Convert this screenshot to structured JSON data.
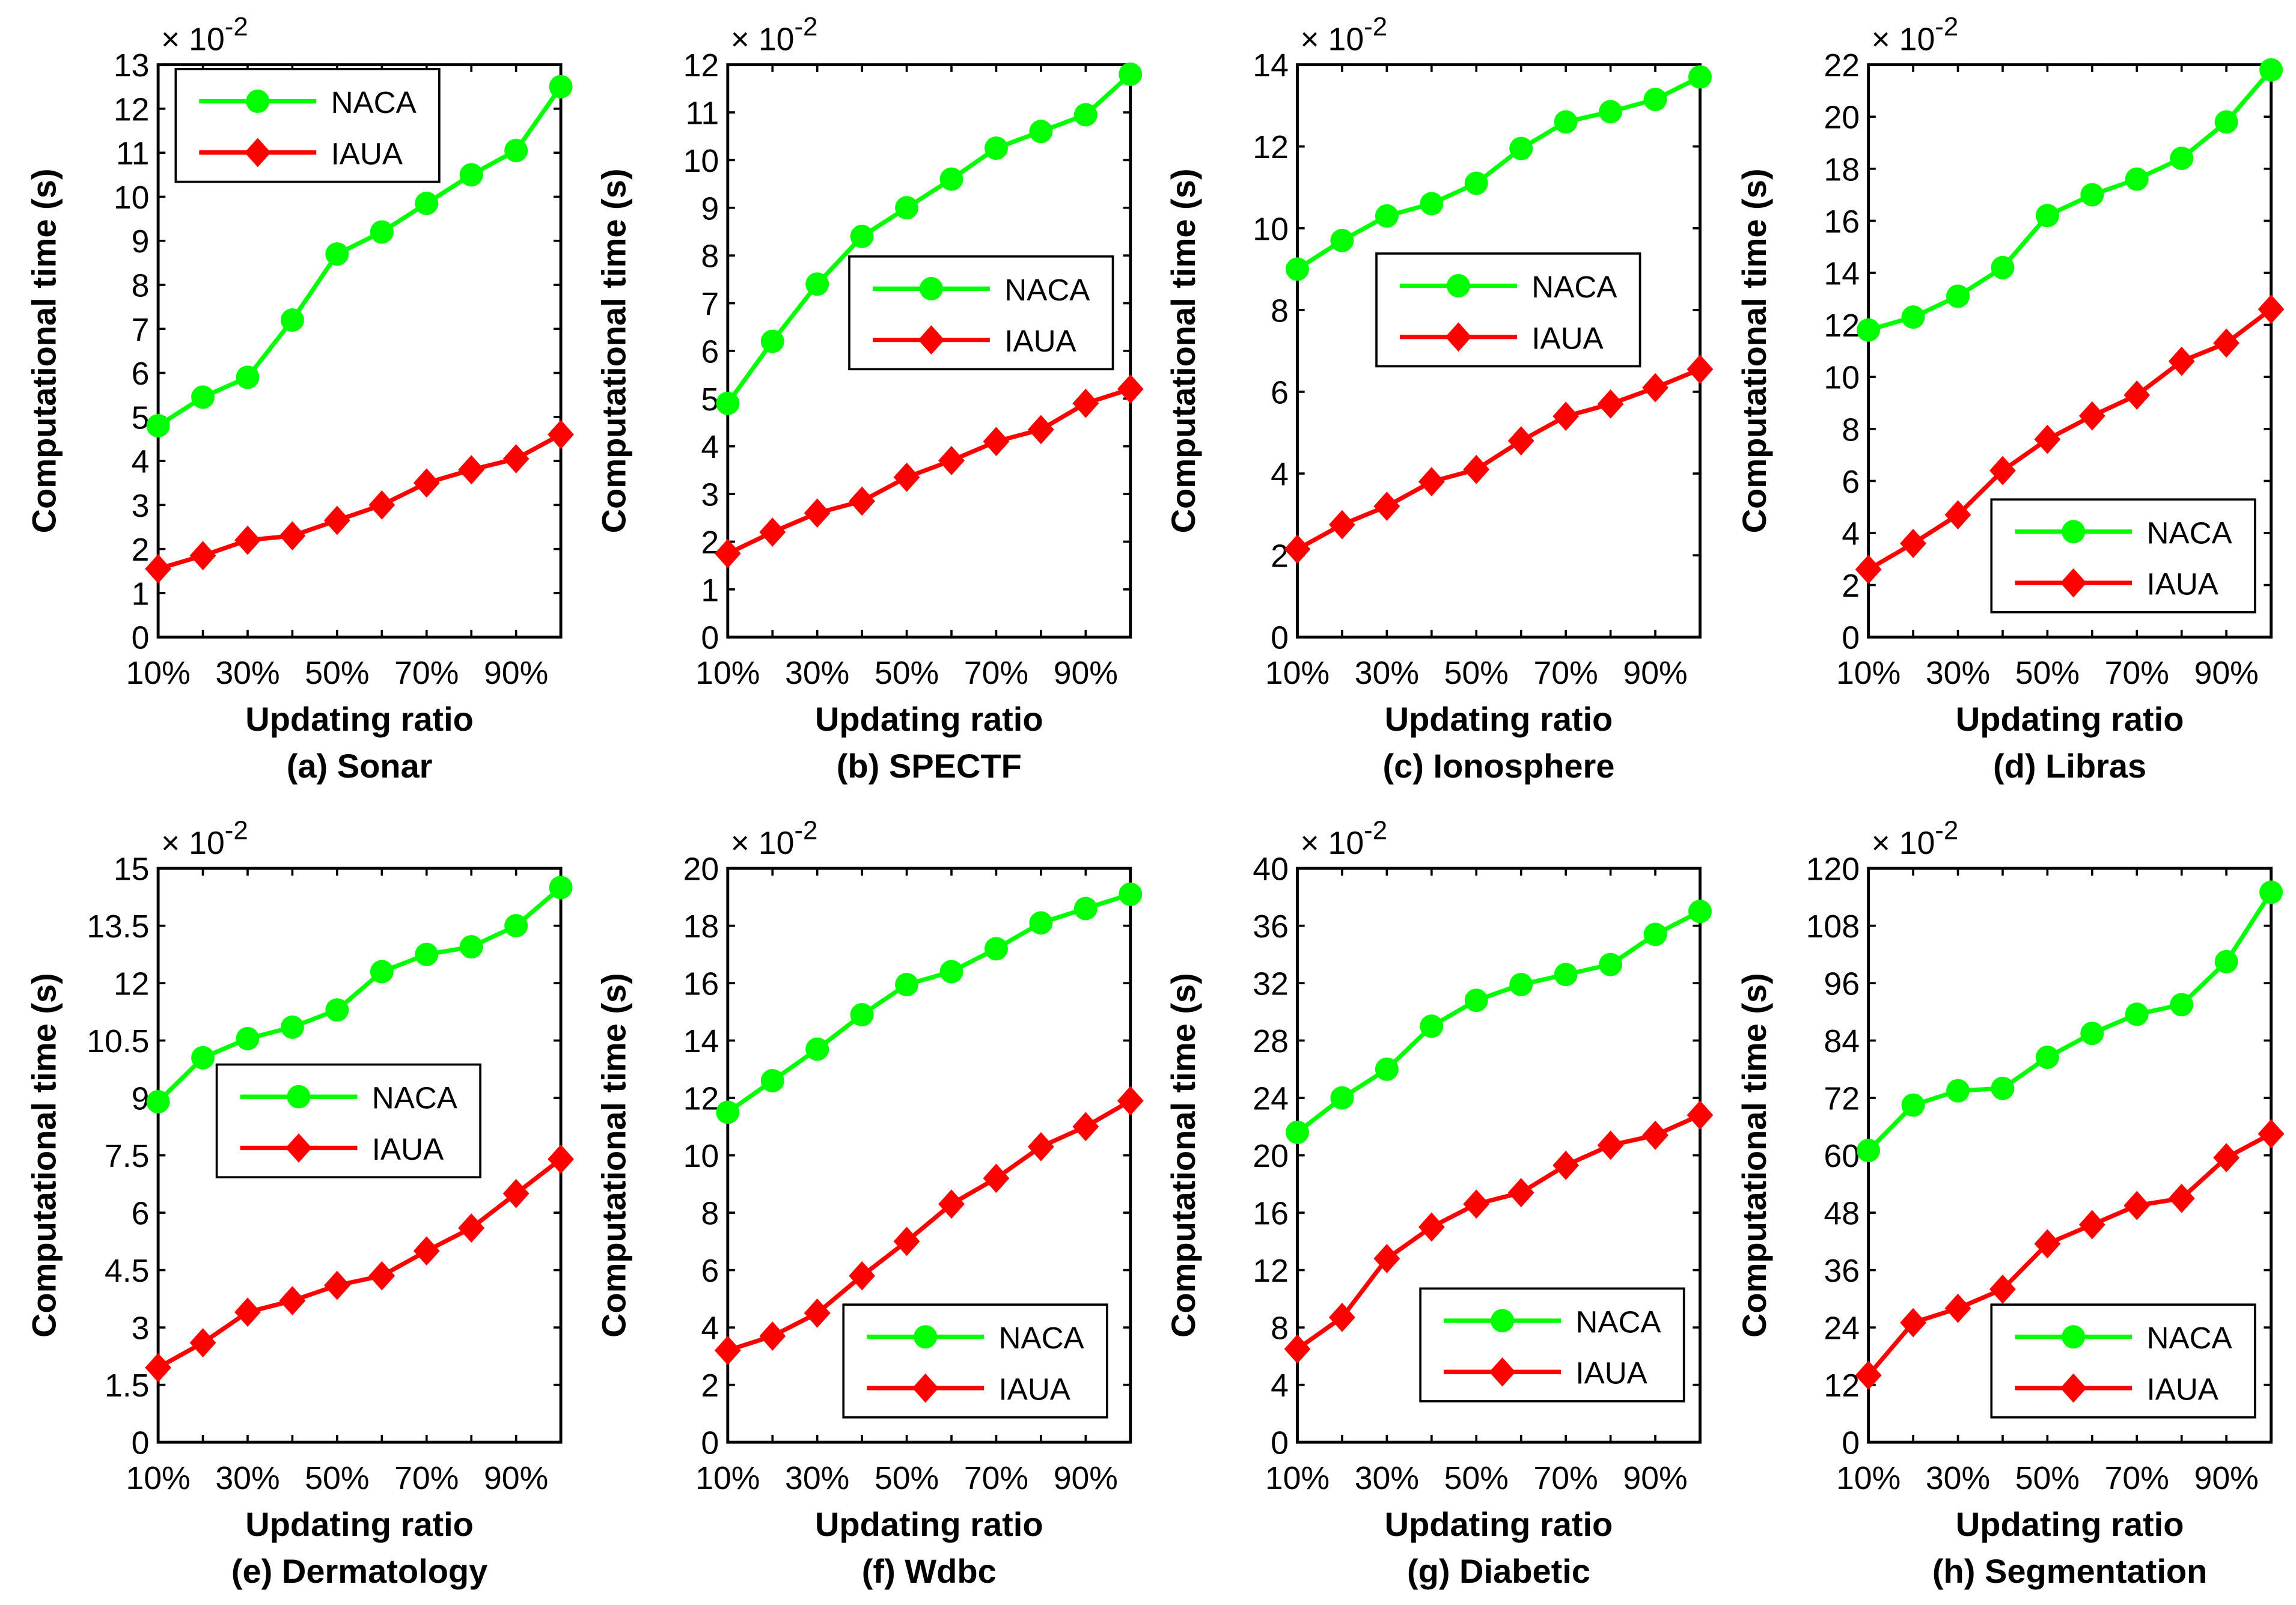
{
  "chart_data": [
    {
      "type": "line",
      "title": "(a) Sonar",
      "xlabel": "Updating ratio",
      "ylabel": "Computational time (s)",
      "y_multiplier": "× 10^-2",
      "x": [
        "10%",
        "20%",
        "30%",
        "40%",
        "50%",
        "60%",
        "70%",
        "80%",
        "90%",
        "100%"
      ],
      "xticklabels": [
        "10%",
        "30%",
        "50%",
        "70%",
        "90%"
      ],
      "ylim": [
        0,
        13
      ],
      "yticks": [
        0,
        1,
        2,
        3,
        4,
        5,
        6,
        7,
        8,
        9,
        10,
        11,
        12,
        13
      ],
      "legend": "top-left",
      "series": [
        {
          "name": "NACA",
          "color": "#00ff00",
          "marker": "circle",
          "values": [
            4.8,
            5.45,
            5.9,
            7.2,
            8.7,
            9.2,
            9.85,
            10.5,
            11.05,
            12.5
          ]
        },
        {
          "name": "IAUA",
          "color": "#ff0000",
          "marker": "diamond",
          "values": [
            1.55,
            1.85,
            2.2,
            2.3,
            2.65,
            3.0,
            3.5,
            3.8,
            4.05,
            4.6
          ]
        }
      ]
    },
    {
      "type": "line",
      "title": "(b) SPECTF",
      "xlabel": "Updating ratio",
      "ylabel": "Computational time (s)",
      "y_multiplier": "× 10^-2",
      "x": [
        "10%",
        "20%",
        "30%",
        "40%",
        "50%",
        "60%",
        "70%",
        "80%",
        "90%",
        "100%"
      ],
      "xticklabels": [
        "10%",
        "30%",
        "50%",
        "70%",
        "90%"
      ],
      "ylim": [
        0,
        12
      ],
      "yticks": [
        0,
        1,
        2,
        3,
        4,
        5,
        6,
        7,
        8,
        9,
        10,
        11,
        12
      ],
      "legend": "center-right",
      "series": [
        {
          "name": "NACA",
          "color": "#00ff00",
          "marker": "circle",
          "values": [
            4.9,
            6.2,
            7.4,
            8.4,
            9.0,
            9.6,
            10.25,
            10.6,
            10.95,
            11.8
          ]
        },
        {
          "name": "IAUA",
          "color": "#ff0000",
          "marker": "diamond",
          "values": [
            1.75,
            2.2,
            2.6,
            2.85,
            3.35,
            3.7,
            4.1,
            4.35,
            4.9,
            5.2
          ]
        }
      ]
    },
    {
      "type": "line",
      "title": "(c) Ionosphere",
      "xlabel": "Updating ratio",
      "ylabel": "Computational time (s)",
      "y_multiplier": "× 10^-2",
      "x": [
        "10%",
        "20%",
        "30%",
        "40%",
        "50%",
        "60%",
        "70%",
        "80%",
        "90%",
        "100%"
      ],
      "xticklabels": [
        "10%",
        "30%",
        "50%",
        "70%",
        "90%"
      ],
      "ylim": [
        0,
        14
      ],
      "yticks": [
        0,
        2,
        4,
        6,
        8,
        10,
        12,
        14
      ],
      "legend": "center-right",
      "series": [
        {
          "name": "NACA",
          "color": "#00ff00",
          "marker": "circle",
          "values": [
            9.0,
            9.7,
            10.3,
            10.6,
            11.1,
            11.95,
            12.6,
            12.85,
            13.15,
            13.7
          ]
        },
        {
          "name": "IAUA",
          "color": "#ff0000",
          "marker": "diamond",
          "values": [
            2.15,
            2.75,
            3.2,
            3.8,
            4.1,
            4.8,
            5.4,
            5.7,
            6.1,
            6.55
          ]
        }
      ]
    },
    {
      "type": "line",
      "title": "(d) Libras",
      "xlabel": "Updating ratio",
      "ylabel": "Computational time (s)",
      "y_multiplier": "× 10^-2",
      "x": [
        "10%",
        "20%",
        "30%",
        "40%",
        "50%",
        "60%",
        "70%",
        "80%",
        "90%",
        "100%"
      ],
      "xticklabels": [
        "10%",
        "30%",
        "50%",
        "70%",
        "90%"
      ],
      "ylim": [
        0,
        22
      ],
      "yticks": [
        0,
        2,
        4,
        6,
        8,
        10,
        12,
        14,
        16,
        18,
        20,
        22
      ],
      "legend": "bottom-right",
      "series": [
        {
          "name": "NACA",
          "color": "#00ff00",
          "marker": "circle",
          "values": [
            11.8,
            12.3,
            13.1,
            14.2,
            16.2,
            17.0,
            17.6,
            18.4,
            19.8,
            21.8
          ]
        },
        {
          "name": "IAUA",
          "color": "#ff0000",
          "marker": "diamond",
          "values": [
            2.6,
            3.6,
            4.7,
            6.4,
            7.6,
            8.5,
            9.3,
            10.6,
            11.3,
            12.6
          ]
        }
      ]
    },
    {
      "type": "line",
      "title": "(e) Dermatology",
      "xlabel": "Updating ratio",
      "ylabel": "Computational time (s)",
      "y_multiplier": "× 10^-2",
      "x": [
        "10%",
        "20%",
        "30%",
        "40%",
        "50%",
        "60%",
        "70%",
        "80%",
        "90%",
        "100%"
      ],
      "xticklabels": [
        "10%",
        "30%",
        "50%",
        "70%",
        "90%"
      ],
      "ylim": [
        0,
        15
      ],
      "yticks": [
        0,
        1.5,
        3,
        4.5,
        6,
        7.5,
        9,
        10.5,
        12,
        13.5,
        15
      ],
      "legend": "center",
      "series": [
        {
          "name": "NACA",
          "color": "#00ff00",
          "marker": "circle",
          "values": [
            8.9,
            10.05,
            10.55,
            10.85,
            11.3,
            12.3,
            12.75,
            12.95,
            13.5,
            14.5
          ]
        },
        {
          "name": "IAUA",
          "color": "#ff0000",
          "marker": "diamond",
          "values": [
            1.95,
            2.6,
            3.4,
            3.7,
            4.1,
            4.35,
            5.0,
            5.6,
            6.5,
            7.4
          ]
        }
      ]
    },
    {
      "type": "line",
      "title": "(f)  Wdbc",
      "xlabel": "Updating ratio",
      "ylabel": "Computational time (s)",
      "y_multiplier": "× 10^-2",
      "x": [
        "10%",
        "20%",
        "30%",
        "40%",
        "50%",
        "60%",
        "70%",
        "80%",
        "90%",
        "100%"
      ],
      "xticklabels": [
        "10%",
        "30%",
        "50%",
        "70%",
        "90%"
      ],
      "ylim": [
        0,
        20
      ],
      "yticks": [
        0,
        2,
        4,
        6,
        8,
        10,
        12,
        14,
        16,
        18,
        20
      ],
      "legend": "bottom-right",
      "series": [
        {
          "name": "NACA",
          "color": "#00ff00",
          "marker": "circle",
          "values": [
            11.5,
            12.6,
            13.7,
            14.9,
            15.95,
            16.4,
            17.2,
            18.1,
            18.6,
            19.1
          ]
        },
        {
          "name": "IAUA",
          "color": "#ff0000",
          "marker": "diamond",
          "values": [
            3.2,
            3.7,
            4.5,
            5.8,
            7.0,
            8.3,
            9.2,
            10.3,
            11.0,
            11.9
          ]
        }
      ]
    },
    {
      "type": "line",
      "title": "(g) Diabetic",
      "xlabel": "Updating ratio",
      "ylabel": "Computational time (s)",
      "y_multiplier": "× 10^-2",
      "x": [
        "10%",
        "20%",
        "30%",
        "40%",
        "50%",
        "60%",
        "70%",
        "80%",
        "90%",
        "100%"
      ],
      "xticklabels": [
        "10%",
        "30%",
        "50%",
        "70%",
        "90%"
      ],
      "ylim": [
        0,
        40
      ],
      "yticks": [
        0,
        4,
        8,
        12,
        16,
        20,
        24,
        28,
        32,
        36,
        40
      ],
      "legend": "bottom-right",
      "series": [
        {
          "name": "NACA",
          "color": "#00ff00",
          "marker": "circle",
          "values": [
            21.6,
            24.0,
            26.0,
            29.0,
            30.8,
            31.9,
            32.6,
            33.3,
            35.4,
            37.0
          ]
        },
        {
          "name": "IAUA",
          "color": "#ff0000",
          "marker": "diamond",
          "values": [
            6.5,
            8.7,
            12.8,
            15.0,
            16.6,
            17.4,
            19.3,
            20.7,
            21.4,
            22.8
          ]
        }
      ]
    },
    {
      "type": "line",
      "title": "(h) Segmentation",
      "xlabel": "Updating ratio",
      "ylabel": "Computational time (s)",
      "y_multiplier": "× 10^-2",
      "x": [
        "10%",
        "20%",
        "30%",
        "40%",
        "50%",
        "60%",
        "70%",
        "80%",
        "90%",
        "100%"
      ],
      "xticklabels": [
        "10%",
        "30%",
        "50%",
        "70%",
        "90%"
      ],
      "ylim": [
        0,
        120
      ],
      "yticks": [
        0,
        12,
        24,
        36,
        48,
        60,
        72,
        84,
        96,
        108,
        120
      ],
      "legend": "bottom-right",
      "series": [
        {
          "name": "NACA",
          "color": "#00ff00",
          "marker": "circle",
          "values": [
            61,
            70.5,
            73.5,
            74,
            80.5,
            85.5,
            89.5,
            91.5,
            100.5,
            115
          ]
        },
        {
          "name": "IAUA",
          "color": "#ff0000",
          "marker": "diamond",
          "values": [
            14,
            25,
            28,
            32,
            41.5,
            45.5,
            49.5,
            51,
            59.5,
            64.5
          ]
        }
      ]
    }
  ]
}
